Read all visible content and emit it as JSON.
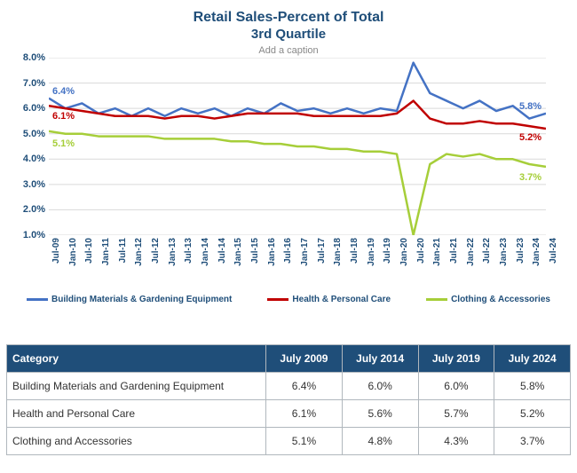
{
  "chart": {
    "type": "line",
    "title_line1": "Retail Sales-Percent of Total",
    "title_line2": "3rd Quartile",
    "title_color": "#1f4e79",
    "title_fontsize": 16,
    "background_color": "#ffffff",
    "grid_color": "#d9d9d9",
    "axis_label_color": "#1f4e79",
    "axis_fontsize": 11,
    "ylim": [
      1.0,
      8.0
    ],
    "ytick_step": 1.0,
    "y_tick_labels": [
      "1.0%",
      "2.0%",
      "3.0%",
      "4.0%",
      "5.0%",
      "6.0%",
      "7.0%",
      "8.0%"
    ],
    "x_labels": [
      "Jul-09",
      "Jan-10",
      "Jul-10",
      "Jan-11",
      "Jul-11",
      "Jan-12",
      "Jul-12",
      "Jan-13",
      "Jul-13",
      "Jan-14",
      "Jul-14",
      "Jan-15",
      "Jul-15",
      "Jan-16",
      "Jul-16",
      "Jan-17",
      "Jul-17",
      "Jan-18",
      "Jul-18",
      "Jan-19",
      "Jul-19",
      "Jan-20",
      "Jul-20",
      "Jan-21",
      "Jul-21",
      "Jan-22",
      "Jul-22",
      "Jan-23",
      "Jul-23",
      "Jan-24",
      "Jul-24"
    ],
    "line_width": 2.5,
    "series": [
      {
        "name": "Building Materials & Gardening Equipment",
        "color": "#4472c4",
        "start_label": "6.4%",
        "end_label": "5.8%",
        "data": [
          6.4,
          6.0,
          6.2,
          5.8,
          6.0,
          5.7,
          6.0,
          5.7,
          6.0,
          5.8,
          6.0,
          5.7,
          6.0,
          5.8,
          6.2,
          5.9,
          6.0,
          5.8,
          6.0,
          5.8,
          6.0,
          5.9,
          7.8,
          6.6,
          6.3,
          6.0,
          6.3,
          5.9,
          6.1,
          5.6,
          5.8
        ]
      },
      {
        "name": "Health & Personal Care",
        "color": "#c00000",
        "start_label": "6.1%",
        "end_label": "5.2%",
        "data": [
          6.1,
          6.0,
          5.9,
          5.8,
          5.7,
          5.7,
          5.7,
          5.6,
          5.7,
          5.7,
          5.6,
          5.7,
          5.8,
          5.8,
          5.8,
          5.8,
          5.7,
          5.7,
          5.7,
          5.7,
          5.7,
          5.8,
          6.3,
          5.6,
          5.4,
          5.4,
          5.5,
          5.4,
          5.4,
          5.3,
          5.2
        ]
      },
      {
        "name": "Clothing & Accessories",
        "color": "#a6ce39",
        "start_label": "5.1%",
        "end_label": "3.7%",
        "data": [
          5.1,
          5.0,
          5.0,
          4.9,
          4.9,
          4.9,
          4.9,
          4.8,
          4.8,
          4.8,
          4.8,
          4.7,
          4.7,
          4.6,
          4.6,
          4.5,
          4.5,
          4.4,
          4.4,
          4.3,
          4.3,
          4.2,
          1.0,
          3.8,
          4.2,
          4.1,
          4.2,
          4.0,
          4.0,
          3.8,
          3.7
        ]
      }
    ],
    "legend_items": [
      {
        "label": "Building Materials & Gardening Equipment",
        "color": "#4472c4"
      },
      {
        "label": "Health & Personal Care",
        "color": "#c00000"
      },
      {
        "label": "Clothing & Accessories",
        "color": "#a6ce39"
      }
    ],
    "caption_placeholder": "Add a caption"
  },
  "table": {
    "header_bg": "#1f4e79",
    "header_color": "#ffffff",
    "border_color": "#b0b7bd",
    "columns": [
      "Category",
      "July 2009",
      "July 2014",
      "July 2019",
      "July 2024"
    ],
    "rows": [
      [
        "Building Materials and Gardening Equipment",
        "6.4%",
        "6.0%",
        "6.0%",
        "5.8%"
      ],
      [
        "Health and Personal Care",
        "6.1%",
        "5.6%",
        "5.7%",
        "5.2%"
      ],
      [
        "Clothing and Accessories",
        "5.1%",
        "4.8%",
        "4.3%",
        "3.7%"
      ]
    ],
    "col_widths": [
      "46%",
      "13.5%",
      "13.5%",
      "13.5%",
      "13.5%"
    ]
  }
}
